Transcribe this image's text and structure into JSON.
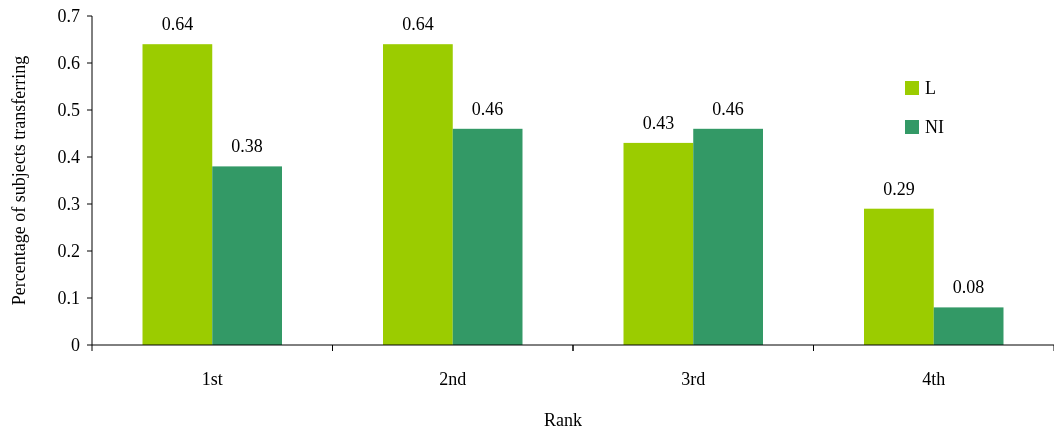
{
  "chart_data": {
    "type": "bar",
    "xlabel": "Rank",
    "ylabel": "Percentage of subjects transferring",
    "categories": [
      "1st",
      "2nd",
      "3rd",
      "4th"
    ],
    "series": [
      {
        "name": "L",
        "color": "#9bcc00",
        "values": [
          0.64,
          0.64,
          0.43,
          0.29
        ]
      },
      {
        "name": "NI",
        "color": "#339966",
        "values": [
          0.38,
          0.46,
          0.46,
          0.08
        ]
      }
    ],
    "ylim": [
      0,
      0.7
    ],
    "yticks": [
      {
        "value": 0,
        "label": "0"
      },
      0.1,
      0.2,
      0.3,
      0.4,
      0.5,
      0.6,
      0.7
    ],
    "data_labels": true,
    "legend": "top right",
    "grid": false
  }
}
